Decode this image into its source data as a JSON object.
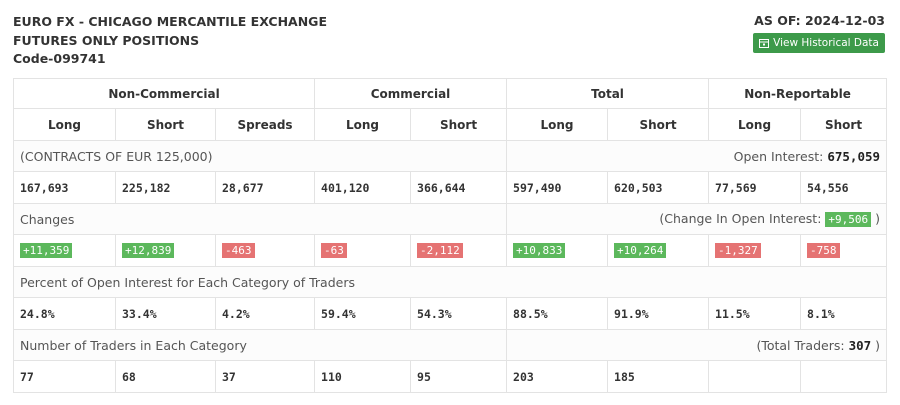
{
  "header": {
    "title_lines": [
      "EURO FX - CHICAGO MERCANTILE EXCHANGE",
      "FUTURES ONLY POSITIONS"
    ],
    "code": "Code-099741",
    "as_of": "AS OF: 2024-12-03",
    "button": "View Historical Data"
  },
  "table": {
    "groups": [
      {
        "label": "Non-Commercial",
        "span": 3
      },
      {
        "label": "Commercial",
        "span": 2
      },
      {
        "label": "Total",
        "span": 2
      },
      {
        "label": "Non-Reportable",
        "span": 2
      }
    ],
    "columns": [
      "Long",
      "Short",
      "Spreads",
      "Long",
      "Short",
      "Long",
      "Short",
      "Long",
      "Short"
    ],
    "sections": [
      {
        "label": "(CONTRACTS OF EUR 125,000)",
        "right_label": "Open Interest:",
        "right_value": "675,059",
        "values": [
          "167,693",
          "225,182",
          "28,677",
          "401,120",
          "366,644",
          "597,490",
          "620,503",
          "77,569",
          "54,556"
        ]
      },
      {
        "label": "Changes",
        "right_label": "(Change In Open Interest:",
        "right_value": "+9,506",
        "right_suffix": ")",
        "badges": true,
        "values": [
          "+11,359",
          "+12,839",
          "-463",
          "-63",
          "-2,112",
          "+10,833",
          "+10,264",
          "-1,327",
          "-758"
        ]
      },
      {
        "label": "Percent of Open Interest for Each Category of Traders",
        "values": [
          "24.8%",
          "33.4%",
          "4.2%",
          "59.4%",
          "54.3%",
          "88.5%",
          "91.9%",
          "11.5%",
          "8.1%"
        ]
      },
      {
        "label": "Number of Traders in Each Category",
        "right_label": "(Total Traders:",
        "right_value": "307",
        "right_suffix": ")",
        "values": [
          "77",
          "68",
          "37",
          "110",
          "95",
          "203",
          "185"
        ]
      }
    ]
  }
}
